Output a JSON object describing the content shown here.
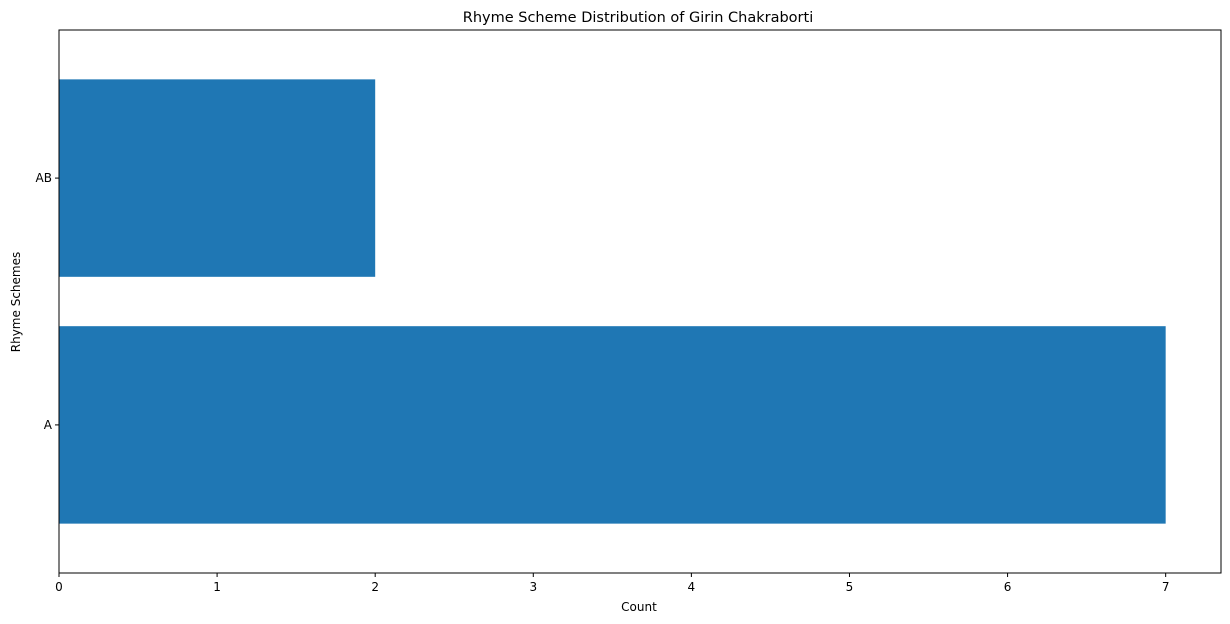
{
  "chart_data": {
    "type": "bar",
    "orientation": "horizontal",
    "title": "Rhyme Scheme Distribution of Girin Chakraborti",
    "xlabel": "Count",
    "ylabel": "Rhyme Schemes",
    "categories": [
      "A",
      "AB"
    ],
    "values": [
      7,
      2
    ],
    "xlim": [
      0,
      7.35
    ],
    "xticks": [
      0,
      1,
      2,
      3,
      4,
      5,
      6,
      7
    ],
    "grid": false,
    "legend": "none",
    "bar_color": "#1f77b4"
  }
}
